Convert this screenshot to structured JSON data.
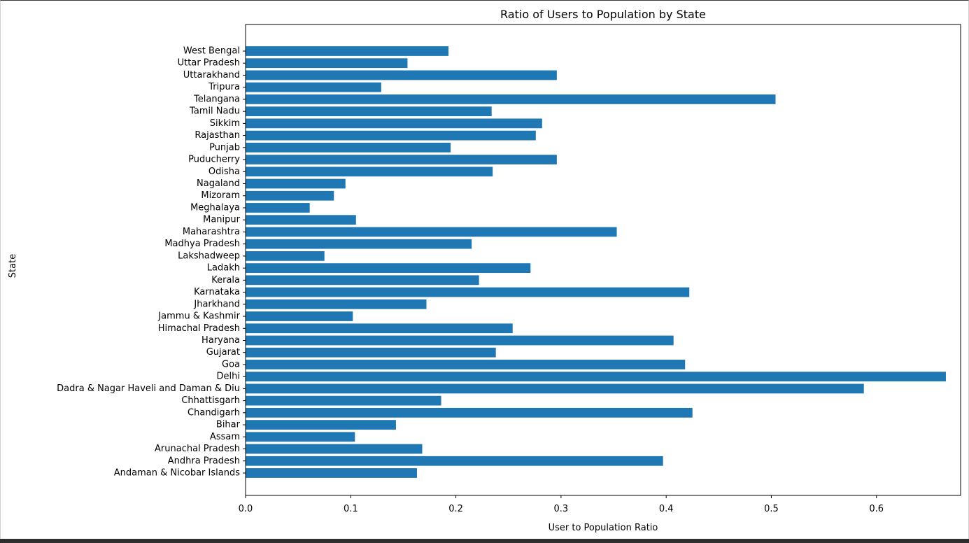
{
  "chart_data": {
    "type": "bar",
    "orientation": "horizontal",
    "title": "Ratio of Users to Population by State",
    "xlabel": "User to Population Ratio",
    "ylabel": "State",
    "xlim": [
      0,
      0.68
    ],
    "xticks": [
      0.0,
      0.1,
      0.2,
      0.3,
      0.4,
      0.5,
      0.6
    ],
    "xtick_labels": [
      "0.0",
      "0.1",
      "0.2",
      "0.3",
      "0.4",
      "0.5",
      "0.6"
    ],
    "bar_color": "#1f77b4",
    "grid": false,
    "categories": [
      "Andaman & Nicobar Islands",
      "Andhra Pradesh",
      "Arunachal Pradesh",
      "Assam",
      "Bihar",
      "Chandigarh",
      "Chhattisgarh",
      "Dadra & Nagar Haveli and Daman & Diu",
      "Delhi",
      "Goa",
      "Gujarat",
      "Haryana",
      "Himachal Pradesh",
      "Jammu & Kashmir",
      "Jharkhand",
      "Karnataka",
      "Kerala",
      "Ladakh",
      "Lakshadweep",
      "Madhya Pradesh",
      "Maharashtra",
      "Manipur",
      "Meghalaya",
      "Mizoram",
      "Nagaland",
      "Odisha",
      "Puducherry",
      "Punjab",
      "Rajasthan",
      "Sikkim",
      "Tamil Nadu",
      "Telangana",
      "Tripura",
      "Uttarakhand",
      "Uttar Pradesh",
      "West Bengal"
    ],
    "values": [
      0.163,
      0.397,
      0.168,
      0.104,
      0.143,
      0.425,
      0.186,
      0.588,
      0.666,
      0.418,
      0.238,
      0.407,
      0.254,
      0.102,
      0.172,
      0.422,
      0.222,
      0.271,
      0.075,
      0.215,
      0.353,
      0.105,
      0.061,
      0.084,
      0.095,
      0.235,
      0.296,
      0.195,
      0.276,
      0.282,
      0.234,
      0.504,
      0.129,
      0.296,
      0.154,
      0.193
    ]
  }
}
